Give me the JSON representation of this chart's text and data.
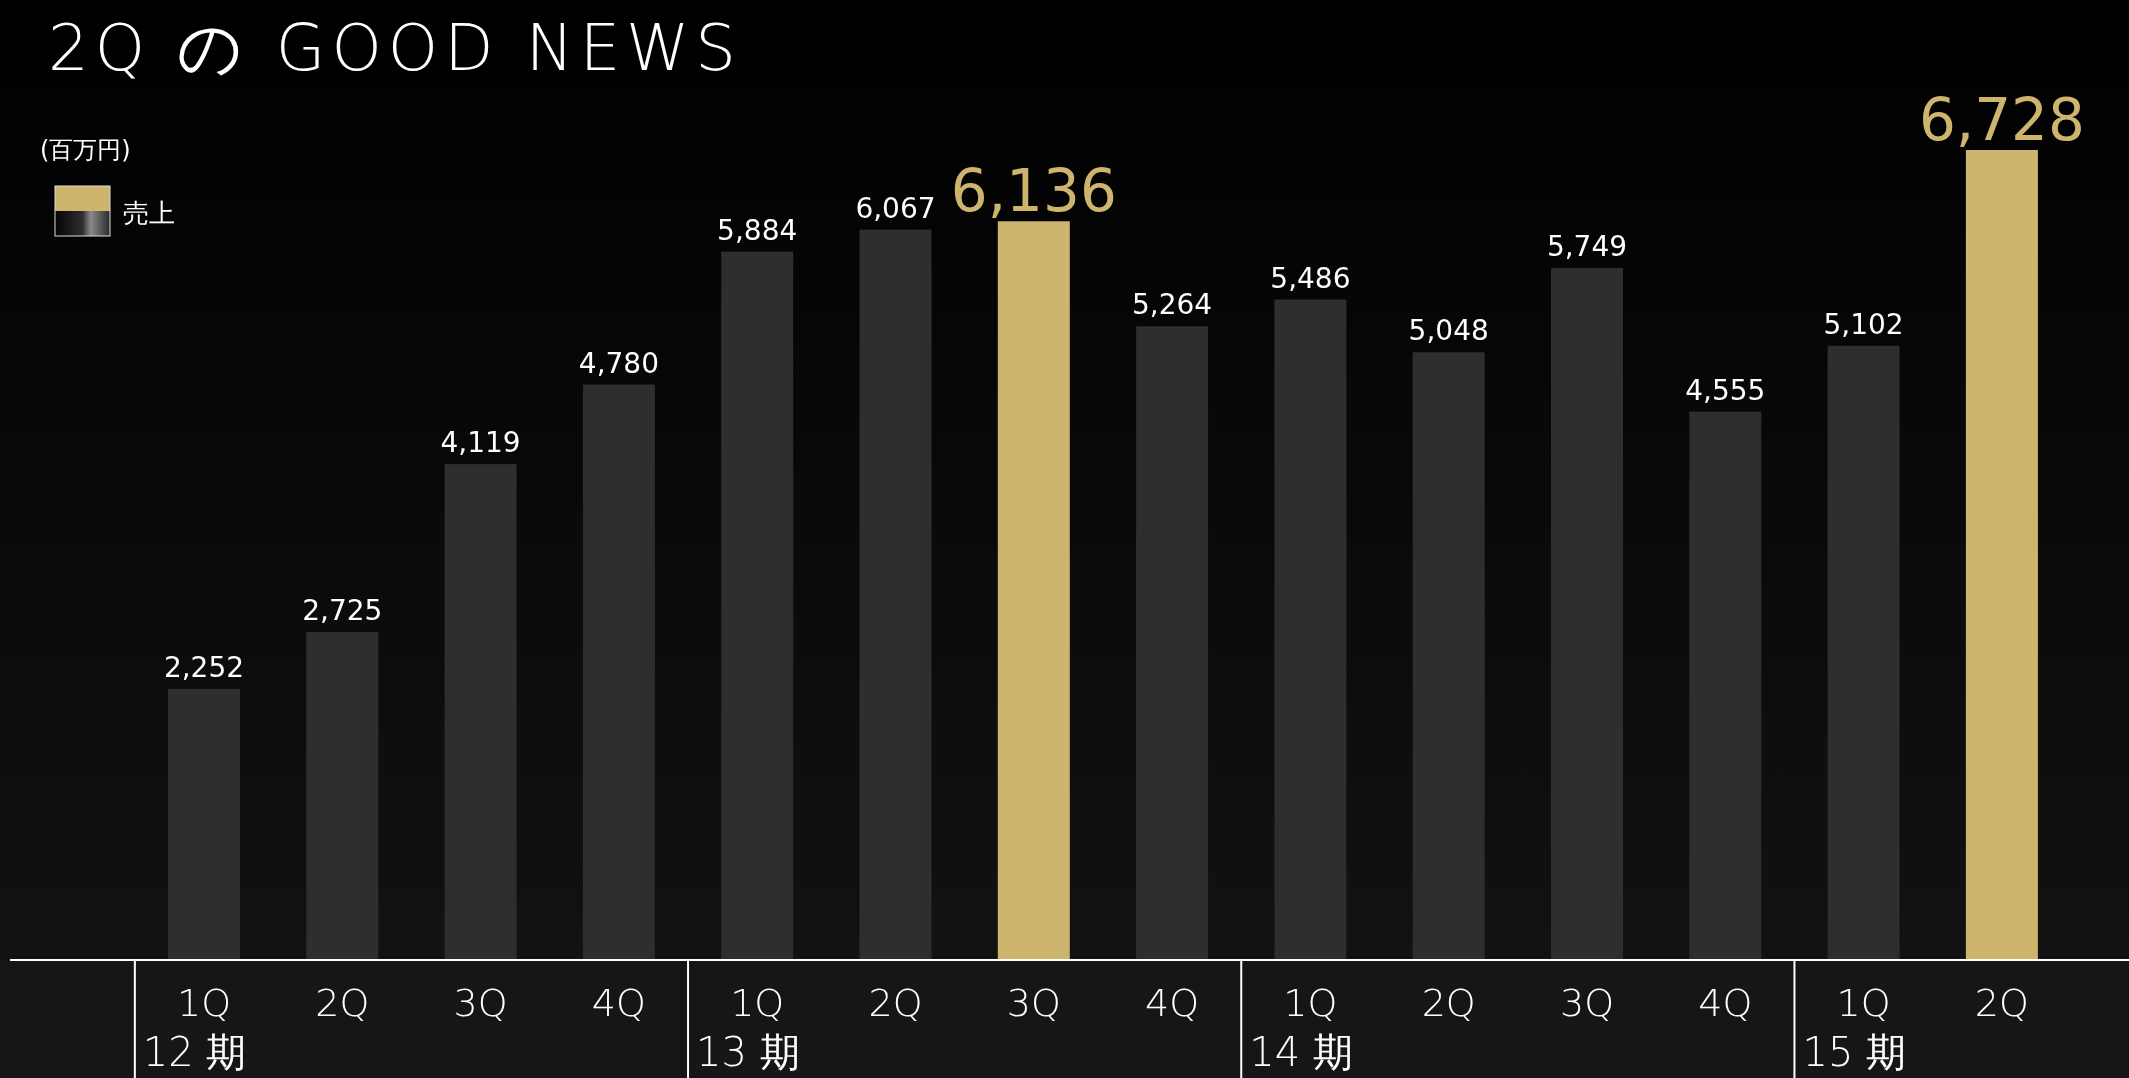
{
  "chart_data": {
    "type": "bar",
    "title": "2Q の GOOD NEWS",
    "ylabel": "(百万円)",
    "categories": [
      "1Q\n12 期",
      "2Q",
      "3Q",
      "4Q",
      "1Q\n13 期",
      "2Q",
      "3Q",
      "4Q",
      "1Q\n14 期",
      "2Q",
      "3Q",
      "4Q",
      "1Q\n15 期",
      "2Q"
    ],
    "series": [
      {
        "name": "売上",
        "color": "#2e2e2e",
        "values": [
          2252,
          2725,
          4119,
          4780,
          5884,
          6067,
          6136,
          5264,
          5486,
          5048,
          5749,
          4555,
          5102,
          6728
        ],
        "colors": [
          "#2e2e2e",
          "#2e2e2e",
          "#2e2e2e",
          "#2e2e2e",
          "#2e2e2e",
          "#2e2e2e",
          "#cdb56e",
          "#2e2e2e",
          "#2e2e2e",
          "#2e2e2e",
          "#2e2e2e",
          "#2e2e2e",
          "#2e2e2e",
          "#cdb56e"
        ],
        "value_labels": [
          "2,252",
          "2,725",
          "4,119",
          "4,780",
          "5,884",
          "6,067",
          "6,136",
          "5,264",
          "5,486",
          "5,048",
          "5,749",
          "4,555",
          "5,102",
          "6,728"
        ]
      }
    ],
    "legend": "top left"
  }
}
